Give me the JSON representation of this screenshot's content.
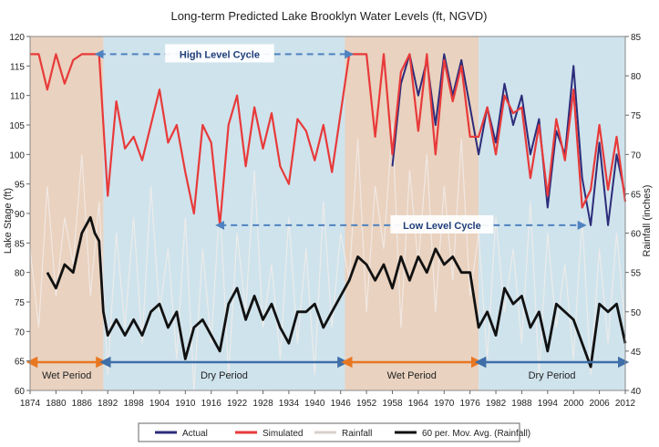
{
  "chart_data": {
    "type": "line",
    "title": "Long-term Predicted Lake Brooklyn Water Levels (ft, NGVD)",
    "ylabel": "Lake Stage (ft)",
    "y2label": "Rainfall (inches)",
    "xlim": [
      1874,
      2012
    ],
    "ylim": [
      60,
      120
    ],
    "y2lim": [
      40,
      85
    ],
    "x_ticks": [
      "1874",
      "1880",
      "1886",
      "1892",
      "1898",
      "1904",
      "1910",
      "1916",
      "1922",
      "1928",
      "1934",
      "1940",
      "1946",
      "1952",
      "1958",
      "1964",
      "1970",
      "1976",
      "1982",
      "1988",
      "1994",
      "2000",
      "2006",
      "2012"
    ],
    "y_ticks": [
      "60",
      "65",
      "70",
      "75",
      "80",
      "85",
      "90",
      "95",
      "100",
      "105",
      "110",
      "115",
      "120"
    ],
    "y2_ticks": [
      "40",
      "45",
      "50",
      "55",
      "60",
      "65",
      "70",
      "75",
      "80",
      "85"
    ],
    "periods": [
      {
        "label": "Wet Period",
        "start": 1874,
        "end": 1891,
        "kind": "wet",
        "arrow_color": "#e87722"
      },
      {
        "label": "Dry Period",
        "start": 1891,
        "end": 1947,
        "kind": "dry",
        "arrow_color": "#3f6fa8"
      },
      {
        "label": "Wet Period",
        "start": 1947,
        "end": 1978,
        "kind": "wet",
        "arrow_color": "#e87722"
      },
      {
        "label": "Dry Period",
        "start": 1978,
        "end": 2012,
        "kind": "dry",
        "arrow_color": "#3f6fa8"
      }
    ],
    "annotations": [
      {
        "label": "High Level Cycle",
        "x_start": 1890,
        "x_end": 1948,
        "y": 117
      },
      {
        "label": "Low Level Cycle",
        "x_start": 1918,
        "x_end": 2002,
        "y": 88
      }
    ],
    "series": [
      {
        "name": "Actual",
        "color": "#2c2c7a",
        "axis": "left",
        "x": [
          1958,
          1960,
          1962,
          1964,
          1966,
          1968,
          1970,
          1972,
          1974,
          1976,
          1978,
          1980,
          1982,
          1984,
          1986,
          1988,
          1990,
          1992,
          1994,
          1996,
          1998,
          2000,
          2002,
          2004,
          2006,
          2008,
          2010,
          2012
        ],
        "y": [
          98,
          112,
          117,
          110,
          116,
          105,
          117,
          110,
          116,
          108,
          100,
          108,
          102,
          112,
          105,
          110,
          100,
          106,
          91,
          104,
          100,
          115,
          96,
          88,
          102,
          88,
          100,
          93
        ]
      },
      {
        "name": "Simulated",
        "color": "#e83a3a",
        "axis": "left",
        "x": [
          1874,
          1876,
          1878,
          1880,
          1882,
          1884,
          1886,
          1888,
          1890,
          1892,
          1894,
          1896,
          1898,
          1900,
          1902,
          1904,
          1906,
          1908,
          1910,
          1912,
          1914,
          1916,
          1918,
          1920,
          1922,
          1924,
          1926,
          1928,
          1930,
          1932,
          1934,
          1936,
          1938,
          1940,
          1942,
          1944,
          1946,
          1948,
          1950,
          1952,
          1954,
          1956,
          1958,
          1960,
          1962,
          1964,
          1966,
          1968,
          1970,
          1972,
          1974,
          1976,
          1978,
          1980,
          1982,
          1984,
          1986,
          1988,
          1990,
          1992,
          1994,
          1996,
          1998,
          2000,
          2002,
          2004,
          2006,
          2008,
          2010,
          2012
        ],
        "y": [
          117,
          117,
          111,
          117,
          112,
          116,
          117,
          117,
          117,
          93,
          109,
          101,
          103,
          99,
          105,
          111,
          102,
          105,
          97,
          90,
          105,
          102,
          88,
          105,
          110,
          98,
          108,
          101,
          107,
          98,
          95,
          106,
          104,
          99,
          105,
          97,
          107,
          117,
          117,
          117,
          103,
          117,
          100,
          114,
          117,
          104,
          117,
          100,
          116,
          109,
          115,
          103,
          103,
          108,
          100,
          110,
          107,
          108,
          96,
          105,
          93,
          106,
          99,
          111,
          91,
          94,
          105,
          94,
          103,
          92
        ]
      },
      {
        "name": "Rainfall",
        "color": "#e8e4e2",
        "axis": "right",
        "x": [
          1874,
          1876,
          1878,
          1880,
          1882,
          1884,
          1886,
          1888,
          1890,
          1892,
          1894,
          1896,
          1898,
          1900,
          1902,
          1904,
          1906,
          1908,
          1910,
          1912,
          1914,
          1916,
          1918,
          1920,
          1922,
          1924,
          1926,
          1928,
          1930,
          1932,
          1934,
          1936,
          1938,
          1940,
          1942,
          1944,
          1946,
          1948,
          1950,
          1952,
          1954,
          1956,
          1958,
          1960,
          1962,
          1964,
          1966,
          1968,
          1970,
          1972,
          1974,
          1976,
          1978,
          1980,
          1982,
          1984,
          1986,
          1988,
          1990,
          1992,
          1994,
          1996,
          1998,
          2000,
          2002,
          2004,
          2006,
          2008,
          2010,
          2012
        ],
        "y": [
          58,
          48,
          66,
          52,
          62,
          56,
          70,
          52,
          64,
          42,
          60,
          48,
          62,
          46,
          66,
          50,
          58,
          44,
          62,
          40,
          58,
          46,
          64,
          42,
          60,
          50,
          68,
          48,
          56,
          44,
          62,
          46,
          58,
          42,
          64,
          48,
          60,
          54,
          72,
          50,
          66,
          58,
          74,
          48,
          68,
          56,
          70,
          50,
          66,
          54,
          72,
          52,
          60,
          44,
          62,
          50,
          58,
          46,
          64,
          42,
          60,
          48,
          56,
          44,
          62,
          42,
          58,
          46,
          60,
          48
        ]
      },
      {
        "name": "60 per. Mov. Avg. (Rainfall)",
        "color": "#111111",
        "axis": "right",
        "x": [
          1878,
          1880,
          1882,
          1884,
          1886,
          1888,
          1889,
          1890,
          1891,
          1892,
          1894,
          1896,
          1898,
          1900,
          1902,
          1904,
          1906,
          1908,
          1910,
          1912,
          1914,
          1916,
          1918,
          1920,
          1922,
          1924,
          1926,
          1928,
          1930,
          1932,
          1934,
          1936,
          1938,
          1940,
          1942,
          1944,
          1946,
          1948,
          1950,
          1952,
          1954,
          1956,
          1958,
          1960,
          1962,
          1964,
          1966,
          1968,
          1970,
          1972,
          1974,
          1976,
          1978,
          1980,
          1982,
          1984,
          1986,
          1988,
          1990,
          1992,
          1994,
          1996,
          1998,
          2000,
          2002,
          2004,
          2006,
          2008,
          2010,
          2012
        ],
        "y": [
          55,
          53,
          56,
          55,
          60,
          62,
          60,
          59,
          50,
          47,
          49,
          47,
          49,
          47,
          50,
          51,
          48,
          50,
          44,
          48,
          49,
          47,
          45,
          51,
          53,
          49,
          52,
          49,
          51,
          48,
          46,
          50,
          50,
          51,
          48,
          50,
          52,
          54,
          57,
          56,
          54,
          56,
          53,
          57,
          54,
          57,
          55,
          58,
          56,
          57,
          55,
          55,
          48,
          50,
          47,
          53,
          51,
          52,
          48,
          50,
          45,
          51,
          50,
          49,
          46,
          43,
          51,
          50,
          51,
          46
        ]
      }
    ]
  },
  "legend": {
    "items": [
      {
        "label": "Actual",
        "color": "#2c2c7a"
      },
      {
        "label": "Simulated",
        "color": "#e83a3a"
      },
      {
        "label": "Rainfall",
        "color": "#d8d0cc"
      },
      {
        "label": "60 per. Mov. Avg. (Rainfall)",
        "color": "#111111"
      }
    ]
  },
  "colors": {
    "wet_band": "#e9d2bf",
    "dry_band": "#cfe3ec",
    "plot_border": "#8a8a8a"
  }
}
